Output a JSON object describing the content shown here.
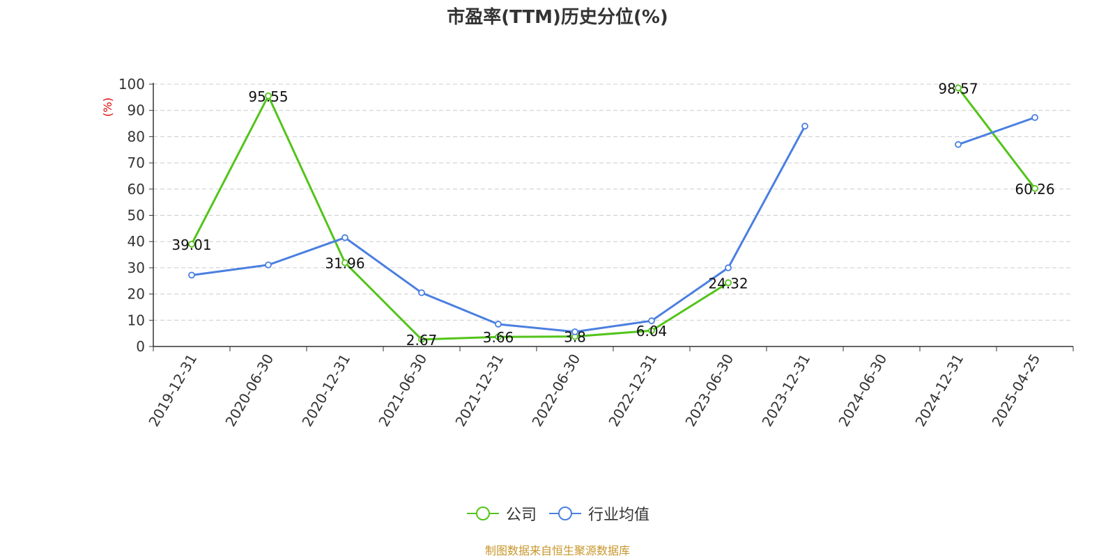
{
  "chart_data": {
    "type": "line",
    "title": "市盈率(TTM)历史分位(%)",
    "ylabel": "(%)",
    "xlabel": "",
    "ylim": [
      0,
      100
    ],
    "yticks": [
      0,
      10,
      20,
      30,
      40,
      50,
      60,
      70,
      80,
      90,
      100
    ],
    "categories": [
      "2019-12-31",
      "2020-06-30",
      "2020-12-31",
      "2021-06-30",
      "2021-12-31",
      "2022-06-30",
      "2022-12-31",
      "2023-06-30",
      "2023-12-31",
      "2024-06-30",
      "2024-12-31",
      "2025-04-25"
    ],
    "series": [
      {
        "name": "公司",
        "color": "#52c41a",
        "values": [
          39.01,
          95.55,
          31.96,
          2.67,
          3.66,
          3.8,
          6.04,
          24.32,
          null,
          null,
          98.57,
          60.26
        ],
        "labels": [
          "39.01",
          "95.55",
          "31.96",
          "2.67",
          "3.66",
          "3.8",
          "6.04",
          "24.32",
          null,
          null,
          "98.57",
          "60.26"
        ]
      },
      {
        "name": "行业均值",
        "color": "#4a7fe0",
        "values": [
          27.2,
          31.1,
          41.5,
          20.5,
          8.5,
          5.6,
          9.8,
          30.0,
          84.0,
          null,
          77.0,
          87.3
        ]
      }
    ],
    "grid": "horizontal-dashed",
    "legend_position": "bottom-center"
  },
  "footer": "制图数据来自恒生聚源数据库"
}
